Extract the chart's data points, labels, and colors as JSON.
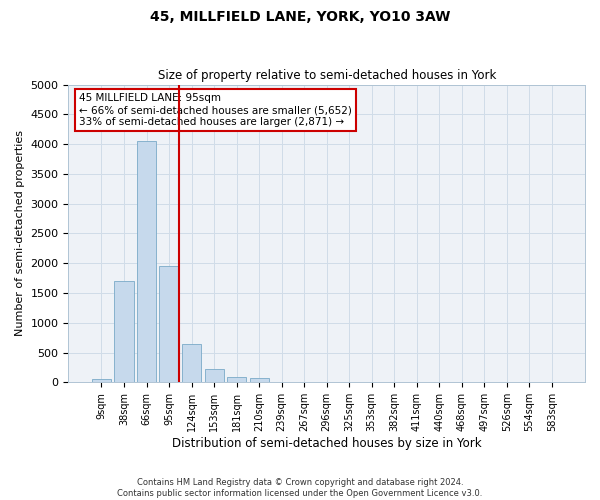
{
  "title": "45, MILLFIELD LANE, YORK, YO10 3AW",
  "subtitle": "Size of property relative to semi-detached houses in York",
  "xlabel": "Distribution of semi-detached houses by size in York",
  "ylabel": "Number of semi-detached properties",
  "footer_line1": "Contains HM Land Registry data © Crown copyright and database right 2024.",
  "footer_line2": "Contains public sector information licensed under the Open Government Licence v3.0.",
  "annotation_title": "45 MILLFIELD LANE: 95sqm",
  "annotation_line1": "← 66% of semi-detached houses are smaller (5,652)",
  "annotation_line2": "33% of semi-detached houses are larger (2,871) →",
  "bar_categories": [
    "9sqm",
    "38sqm",
    "66sqm",
    "95sqm",
    "124sqm",
    "153sqm",
    "181sqm",
    "210sqm",
    "239sqm",
    "267sqm",
    "296sqm",
    "325sqm",
    "353sqm",
    "382sqm",
    "411sqm",
    "440sqm",
    "468sqm",
    "497sqm",
    "526sqm",
    "554sqm",
    "583sqm"
  ],
  "bar_values": [
    50,
    1700,
    4050,
    1950,
    650,
    220,
    95,
    70,
    0,
    0,
    0,
    0,
    0,
    0,
    0,
    0,
    0,
    0,
    0,
    0,
    0
  ],
  "bar_color": "#c6d9ec",
  "bar_edge_color": "#7aaac8",
  "vline_color": "#cc0000",
  "vline_x_index": 3,
  "annotation_box_edge": "#cc0000",
  "ylim": [
    0,
    5000
  ],
  "yticks": [
    0,
    500,
    1000,
    1500,
    2000,
    2500,
    3000,
    3500,
    4000,
    4500,
    5000
  ],
  "grid_color": "#d0dce8",
  "background_color": "#ffffff",
  "plot_bg_color": "#eef2f7"
}
